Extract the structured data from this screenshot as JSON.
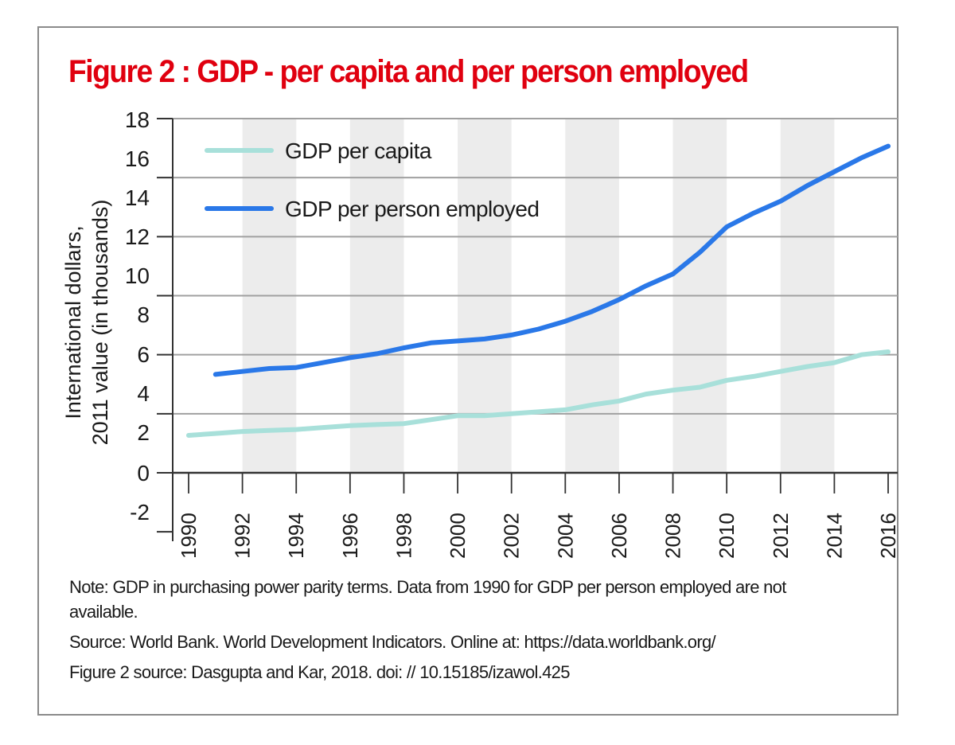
{
  "figure": {
    "title": "Figure 2 : GDP - per capita and per person employed",
    "note": "Note: GDP in purchasing power parity terms. Data from 1990 for GDP per person employed are not available.",
    "source": "Source: World Bank. World Development Indicators. Online at: https://data.worldbank.org/",
    "figure_source": "Figure 2 source: Dasgupta and Kar, 2018. doi: // 10.15185/izawol.425"
  },
  "colors": {
    "title": "#e0000f",
    "gdp_per_capita": "#a8e0da",
    "gdp_per_person_employed": "#2a78e8",
    "band": "#ececec",
    "grid": "#a0a0a0",
    "axis": "#333333"
  },
  "chart_data": {
    "type": "line",
    "title": "Figure 2 : GDP - per capita and per person employed",
    "xlabel": "",
    "ylabel": "International dollars, 2011 value (in thousands)",
    "ylabel_lines": [
      "International dollars,",
      "2011 value (in thousands)"
    ],
    "xlim": [
      1990,
      2016
    ],
    "ylim": [
      -3,
      18
    ],
    "y_ticks": [
      "18",
      "16",
      "14",
      "12",
      "10",
      "8",
      "6",
      "4",
      "2",
      "0",
      "-2"
    ],
    "x_ticks": [
      "1990",
      "1992",
      "1994",
      "1996",
      "1998",
      "2000",
      "2002",
      "2004",
      "2006",
      "2008",
      "2010",
      "2012",
      "2014",
      "2016"
    ],
    "grid": true,
    "shaded_bands": [
      [
        1992,
        1994
      ],
      [
        1996,
        1998
      ],
      [
        2000,
        2002
      ],
      [
        2004,
        2006
      ],
      [
        2008,
        2010
      ],
      [
        2012,
        2014
      ]
    ],
    "legend_position": "top-left",
    "series": [
      {
        "name": "GDP per capita",
        "x": [
          1990,
          1991,
          1992,
          1993,
          1994,
          1995,
          1996,
          1997,
          1998,
          1999,
          2000,
          2001,
          2002,
          2003,
          2004,
          2005,
          2006,
          2007,
          2008,
          2009,
          2010,
          2011,
          2012,
          2013,
          2014,
          2015,
          2016
        ],
        "values": [
          1.9,
          2.0,
          2.1,
          2.15,
          2.2,
          2.3,
          2.4,
          2.45,
          2.5,
          2.7,
          2.9,
          2.9,
          3.0,
          3.1,
          3.2,
          3.45,
          3.65,
          4.0,
          4.2,
          4.35,
          4.7,
          4.9,
          5.15,
          5.4,
          5.6,
          6.0,
          6.15
        ]
      },
      {
        "name": "GDP per person employed",
        "x": [
          1991,
          1992,
          1993,
          1994,
          1995,
          1996,
          1997,
          1998,
          1999,
          2000,
          2001,
          2002,
          2003,
          2004,
          2005,
          2006,
          2007,
          2008,
          2009,
          2010,
          2011,
          2012,
          2013,
          2014,
          2015,
          2016
        ],
        "values": [
          5.0,
          5.15,
          5.3,
          5.35,
          5.6,
          5.85,
          6.05,
          6.35,
          6.6,
          6.7,
          6.8,
          7.0,
          7.3,
          7.7,
          8.2,
          8.8,
          9.5,
          10.1,
          11.2,
          12.5,
          13.2,
          13.8,
          14.6,
          15.3,
          16.0,
          16.6
        ]
      }
    ]
  }
}
